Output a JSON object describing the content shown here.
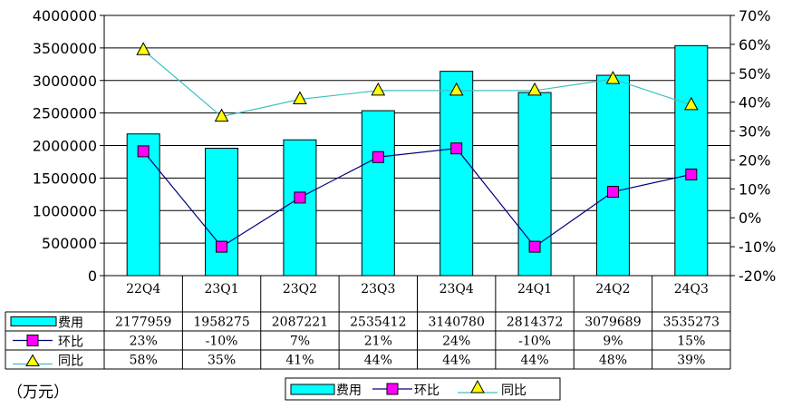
{
  "chart_data": {
    "type": "bar",
    "categories": [
      "22Q4",
      "23Q1",
      "23Q2",
      "23Q3",
      "23Q4",
      "24Q1",
      "24Q2",
      "24Q3"
    ],
    "series": [
      {
        "name": "费用",
        "type": "bar",
        "axis": "left",
        "values": [
          2177959,
          1958275,
          2087221,
          2535412,
          3140780,
          2814372,
          3079689,
          3535273
        ],
        "labels": [
          "2177959",
          "1958275",
          "2087221",
          "2535412",
          "3140780",
          "2814372",
          "3079689",
          "3535273"
        ]
      },
      {
        "name": "环比",
        "type": "line",
        "axis": "right",
        "values": [
          23,
          -10,
          7,
          21,
          24,
          -10,
          9,
          15
        ],
        "labels": [
          "23%",
          "-10%",
          "7%",
          "21%",
          "24%",
          "-10%",
          "9%",
          "15%"
        ]
      },
      {
        "name": "同比",
        "type": "line",
        "axis": "right",
        "values": [
          58,
          35,
          41,
          44,
          44,
          44,
          48,
          39
        ],
        "labels": [
          "58%",
          "35%",
          "41%",
          "44%",
          "44%",
          "44%",
          "48%",
          "39%"
        ]
      }
    ],
    "ylim_left": [
      0,
      4000000
    ],
    "yticks_left": [
      "0",
      "500000",
      "1000000",
      "1500000",
      "2000000",
      "2500000",
      "3000000",
      "3500000",
      "4000000"
    ],
    "ylim_right": [
      -20,
      70
    ],
    "yticks_right": [
      "-20%",
      "-10%",
      "0%",
      "10%",
      "20%",
      "30%",
      "40%",
      "50%",
      "60%",
      "70%"
    ],
    "unit_label": "（万元）",
    "legend_position": "bottom",
    "data_table": true,
    "colors": {
      "bar": "#00ffff",
      "bar_edge": "#000000",
      "ring": "#000080",
      "ring_marker": "#ff00ff",
      "yoy": "#40c0c0",
      "yoy_marker": "#ffff00"
    }
  }
}
